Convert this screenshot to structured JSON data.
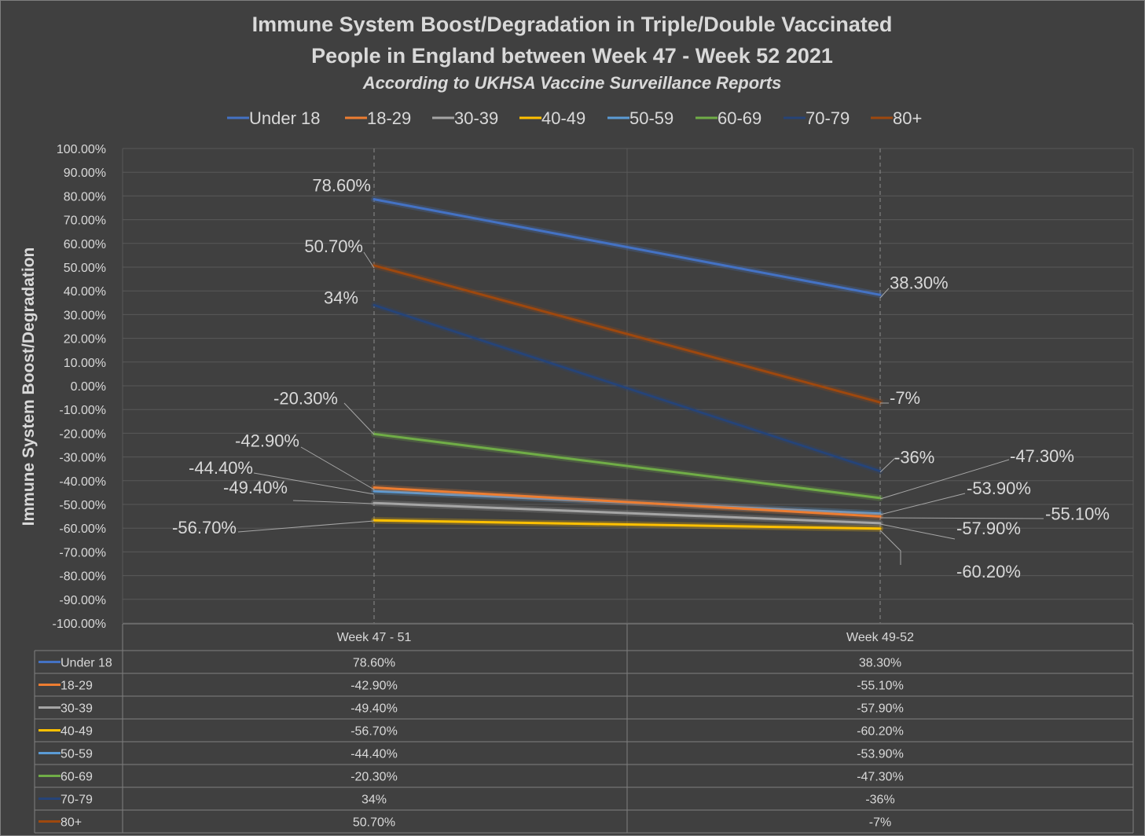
{
  "chart_data": {
    "type": "line",
    "title_line1": "Immune System Boost/Degradation in Triple/Double Vaccinated",
    "title_line2": "People in England between Week 47 - Week 52 2021",
    "subtitle": "According to UKHSA Vaccine Surveillance Reports",
    "ylabel": "Immune System Boost/Degradation",
    "xlabel": "",
    "categories": [
      "Week 47 - 51",
      "Week 49-52"
    ],
    "ylim": [
      -100,
      100
    ],
    "ytick_step": 10,
    "yticks": [
      "100.00%",
      "90.00%",
      "80.00%",
      "70.00%",
      "60.00%",
      "50.00%",
      "40.00%",
      "30.00%",
      "20.00%",
      "10.00%",
      "0.00%",
      "-10.00%",
      "-20.00%",
      "-30.00%",
      "-40.00%",
      "-50.00%",
      "-60.00%",
      "-70.00%",
      "-80.00%",
      "-90.00%",
      "-100.00%"
    ],
    "grid": true,
    "legend_position": "top",
    "data_table": true,
    "series": [
      {
        "name": "Under 18",
        "color": "#4472c4",
        "values": [
          78.6,
          38.3
        ],
        "labels": [
          "78.60%",
          "38.30%"
        ]
      },
      {
        "name": "18-29",
        "color": "#ed7d31",
        "values": [
          -42.9,
          -55.1
        ],
        "labels": [
          "-42.90%",
          "-55.10%"
        ]
      },
      {
        "name": "30-39",
        "color": "#a5a5a5",
        "values": [
          -49.4,
          -57.9
        ],
        "labels": [
          "-49.40%",
          "-57.90%"
        ]
      },
      {
        "name": "40-49",
        "color": "#ffc000",
        "values": [
          -56.7,
          -60.2
        ],
        "labels": [
          "-56.70%",
          "-60.20%"
        ]
      },
      {
        "name": "50-59",
        "color": "#5b9bd5",
        "values": [
          -44.4,
          -53.9
        ],
        "labels": [
          "-44.40%",
          "-53.90%"
        ]
      },
      {
        "name": "60-69",
        "color": "#70ad47",
        "values": [
          -20.3,
          -47.3
        ],
        "labels": [
          "-20.30%",
          "-47.30%"
        ]
      },
      {
        "name": "70-79",
        "color": "#264478",
        "values": [
          34,
          -36
        ],
        "labels": [
          "34%",
          "-36%"
        ]
      },
      {
        "name": "80+",
        "color": "#9e480e",
        "values": [
          50.7,
          -7
        ],
        "labels": [
          "50.70%",
          "-7%"
        ]
      }
    ]
  }
}
